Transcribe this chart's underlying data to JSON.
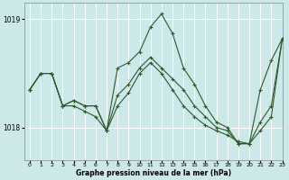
{
  "xlabel_label": "Graphe pression niveau de la mer (hPa)",
  "xlim": [
    -0.5,
    23
  ],
  "ylim": [
    1017.7,
    1019.15
  ],
  "yticks": [
    1018,
    1019
  ],
  "xticks": [
    0,
    1,
    2,
    3,
    4,
    5,
    6,
    7,
    8,
    9,
    10,
    11,
    12,
    13,
    14,
    15,
    16,
    17,
    18,
    19,
    20,
    21,
    22,
    23
  ],
  "bg_color": "#cce8e8",
  "grid_color": "#ffffff",
  "line_color": "#2d5a2d",
  "series": [
    [
      1018.35,
      1018.5,
      1018.5,
      1018.2,
      1018.25,
      1018.2,
      1018.2,
      1017.97,
      1018.55,
      1018.6,
      1018.7,
      1018.93,
      1019.05,
      1018.87,
      1018.55,
      1018.4,
      1018.2,
      1018.05,
      1018.0,
      1017.85,
      1017.85,
      1018.35,
      1018.62,
      1018.82
    ],
    [
      1018.35,
      1018.5,
      1018.5,
      1018.2,
      1018.25,
      1018.2,
      1018.2,
      1017.97,
      1018.3,
      1018.4,
      1018.55,
      1018.65,
      1018.55,
      1018.45,
      1018.35,
      1018.2,
      1018.1,
      1018.0,
      1017.97,
      1017.85,
      1017.85,
      1018.05,
      1018.2,
      1018.82
    ],
    [
      1018.35,
      1018.5,
      1018.5,
      1018.2,
      1018.2,
      1018.15,
      1018.1,
      1017.97,
      1018.2,
      1018.32,
      1018.5,
      1018.6,
      1018.5,
      1018.35,
      1018.2,
      1018.1,
      1018.02,
      1017.97,
      1017.93,
      1017.87,
      1017.85,
      1017.97,
      1018.1,
      1018.82
    ]
  ]
}
